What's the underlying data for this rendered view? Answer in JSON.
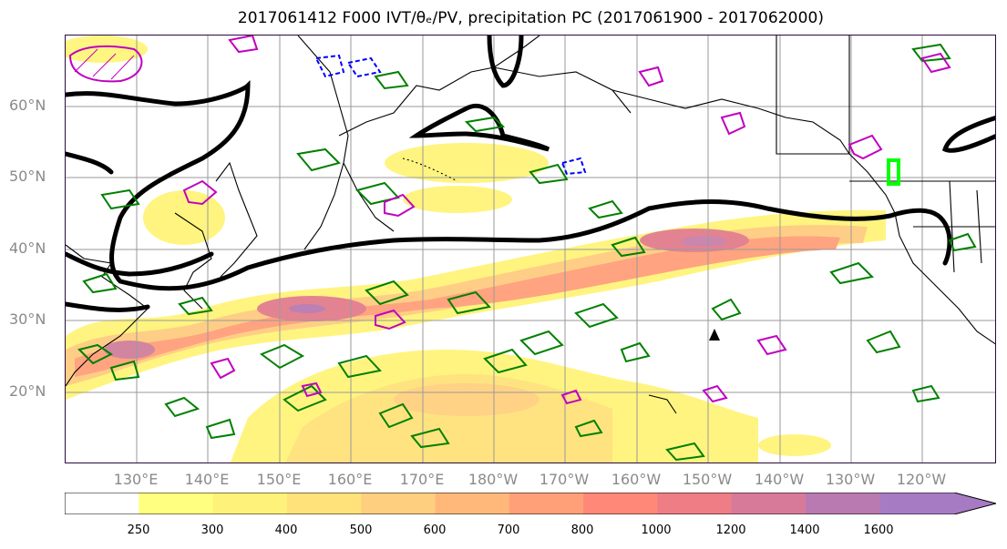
{
  "title": "2017061412 F000 IVT/θₑ/PV, precipitation PC (2017061900 - 2017062000)",
  "lat_labels": [
    "60°N",
    "50°N",
    "40°N",
    "30°N",
    "20°N"
  ],
  "lon_labels": [
    "130°E",
    "140°E",
    "150°E",
    "160°E",
    "170°E",
    "180°W",
    "170°W",
    "160°W",
    "150°W",
    "140°W",
    "130°W",
    "120°W"
  ],
  "colorbar": {
    "ticks": [
      "250",
      "300",
      "400",
      "500",
      "600",
      "700",
      "800",
      "1000",
      "1200",
      "1400",
      "1600"
    ],
    "colors": [
      "#ffffff",
      "#ffff80",
      "#fff27a",
      "#ffe27a",
      "#ffcf80",
      "#ffb87a",
      "#ffa078",
      "#ff8878",
      "#ee7d86",
      "#d77a9a",
      "#b87ab0",
      "#a77bc4"
    ]
  },
  "colors": {
    "ivt_contour": "#000000",
    "theta_e": "#008000",
    "pv_positive": "#c000c0",
    "pv_negative": "#0000ff",
    "highlight": "#00ff00"
  }
}
